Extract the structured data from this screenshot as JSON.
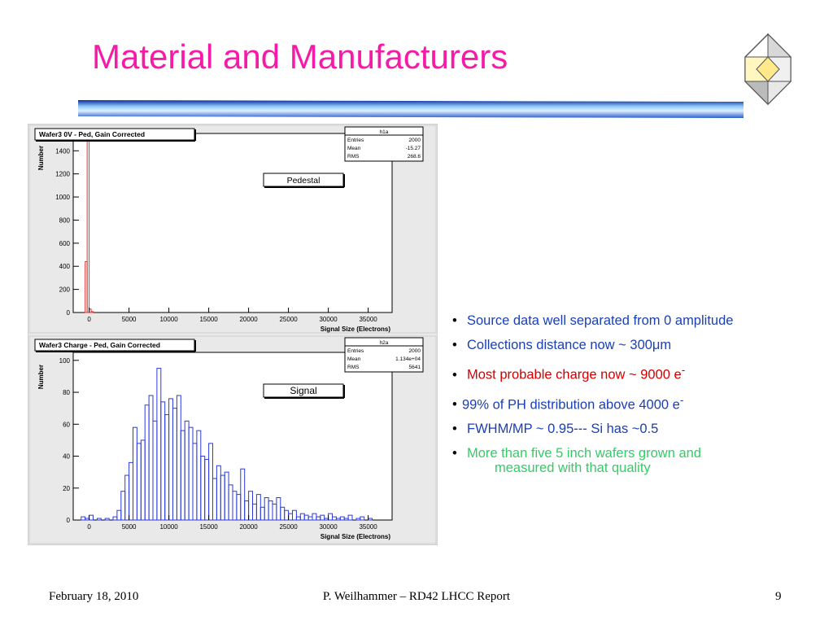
{
  "slide": {
    "title": "Material and Manufacturers",
    "bullets": [
      {
        "text": "Source data well separated from 0 amplitude",
        "color": "#1a3fb8"
      },
      {
        "text": "Collections distance now ~ 300μm",
        "color": "#1a3fb8"
      },
      {
        "text": "Most probable charge now ~ 9000 e",
        "sup": "-",
        "color": "#d10000"
      },
      {
        "text": "99% of PH distribution above 4000 e",
        "sup": "-",
        "color": "#1a3fb8"
      },
      {
        "text": "FWHM/MP ~ 0.95--- Si has ~0.5",
        "color": "#1a3fb8"
      },
      {
        "text": "More than five 5 inch wafers grown and",
        "cont": "measured with that quality",
        "color": "#33cc66"
      }
    ],
    "footer": {
      "date": "February 18, 2010",
      "center": "P. Weilhammer – RD42 LHCC Report",
      "page": "9"
    },
    "logo_icon": "diamond-logo-icon"
  },
  "chart_data": [
    {
      "type": "bar",
      "title": "Wafer3 0V - Ped, Gain Corrected",
      "xlabel": "Signal Size (Electrons)",
      "ylabel": "Number",
      "annotation": "Pedestal",
      "stats": {
        "name": "h1a",
        "rows": [
          [
            "Entries",
            "2000"
          ],
          [
            "Mean",
            "-15.27"
          ],
          [
            "RMS",
            "268.6"
          ]
        ]
      },
      "xlim": [
        -2000,
        38000
      ],
      "ylim": [
        0,
        1550
      ],
      "xticks": [
        "0",
        "5000",
        "10000",
        "15000",
        "20000",
        "25000",
        "30000",
        "35000"
      ],
      "yticks": [
        "0",
        "200",
        "400",
        "600",
        "800",
        "1000",
        "1200",
        "1400"
      ],
      "bin_width": 250,
      "x": [
        -500,
        -250,
        0,
        250
      ],
      "values": [
        440,
        1510,
        30,
        8
      ],
      "color": "#e83030"
    },
    {
      "type": "bar",
      "title": "Wafer3  Charge - Ped, Gain Corrected",
      "xlabel": "Signal Size (Electrons)",
      "ylabel": "Number",
      "annotation": "Signal",
      "stats": {
        "name": "h2a",
        "rows": [
          [
            "Entries",
            "2000"
          ],
          [
            "Mean",
            "1.134e+04"
          ],
          [
            "RMS",
            "5641"
          ]
        ]
      },
      "xlim": [
        -2000,
        38000
      ],
      "ylim": [
        0,
        105
      ],
      "xticks": [
        "0",
        "5000",
        "10000",
        "15000",
        "20000",
        "25000",
        "30000",
        "35000"
      ],
      "yticks": [
        "0",
        "20",
        "40",
        "60",
        "80",
        "100"
      ],
      "bin_width": 500,
      "x": [
        -2000,
        -1500,
        -1000,
        -500,
        0,
        500,
        1000,
        1500,
        2000,
        2500,
        3000,
        3500,
        4000,
        4500,
        5000,
        5500,
        6000,
        6500,
        7000,
        7500,
        8000,
        8500,
        9000,
        9500,
        10000,
        10500,
        11000,
        11500,
        12000,
        12500,
        13000,
        13500,
        14000,
        14500,
        15000,
        15500,
        16000,
        16500,
        17000,
        17500,
        18000,
        18500,
        19000,
        19500,
        20000,
        20500,
        21000,
        21500,
        22000,
        22500,
        23000,
        23500,
        24000,
        24500,
        25000,
        25500,
        26000,
        26500,
        27000,
        27500,
        28000,
        28500,
        29000,
        29500,
        30000,
        30500,
        31000,
        31500,
        32000,
        32500,
        33000,
        33500,
        34000,
        34500,
        35000,
        35500,
        36000,
        36500,
        37000,
        37500
      ],
      "values": [
        0,
        0,
        2,
        1,
        3,
        0,
        1,
        0,
        1,
        0,
        2,
        6,
        18,
        28,
        36,
        58,
        48,
        50,
        72,
        78,
        62,
        95,
        74,
        66,
        76,
        70,
        78,
        56,
        62,
        58,
        48,
        56,
        40,
        38,
        48,
        26,
        34,
        28,
        30,
        22,
        18,
        16,
        32,
        12,
        18,
        10,
        16,
        8,
        14,
        12,
        10,
        14,
        8,
        6,
        4,
        6,
        2,
        4,
        3,
        2,
        4,
        2,
        3,
        1,
        4,
        2,
        1,
        2,
        1,
        3,
        0,
        1,
        2,
        0,
        1,
        0,
        0,
        0,
        0,
        0
      ],
      "color": "#2a3ae0"
    }
  ]
}
